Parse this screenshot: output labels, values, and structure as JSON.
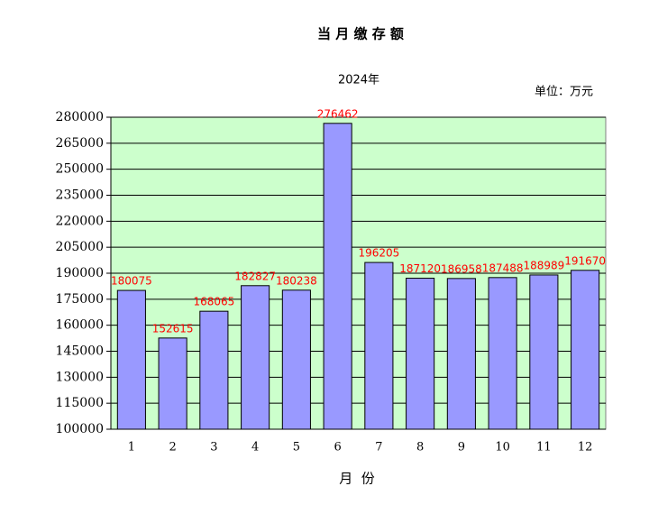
{
  "chart_data": {
    "type": "bar",
    "title": "当 月 缴 存 额",
    "subtitle": "2024年",
    "unit_note": "单位：万元",
    "x_label": "月  份",
    "categories": [
      "1",
      "2",
      "3",
      "4",
      "5",
      "6",
      "7",
      "8",
      "9",
      "10",
      "11",
      "12"
    ],
    "values": [
      180075,
      152615,
      168065,
      182827,
      180238,
      276462,
      196205,
      187120,
      186958,
      187488,
      188989,
      191670
    ],
    "color": "#9999ff",
    "label_color": "#ff0000",
    "plot_background": "#ccffcc",
    "ylim": [
      100000,
      280000
    ],
    "yticks": [
      100000,
      115000,
      130000,
      145000,
      160000,
      175000,
      190000,
      205000,
      220000,
      235000,
      250000,
      265000,
      280000
    ],
    "grid": true
  }
}
